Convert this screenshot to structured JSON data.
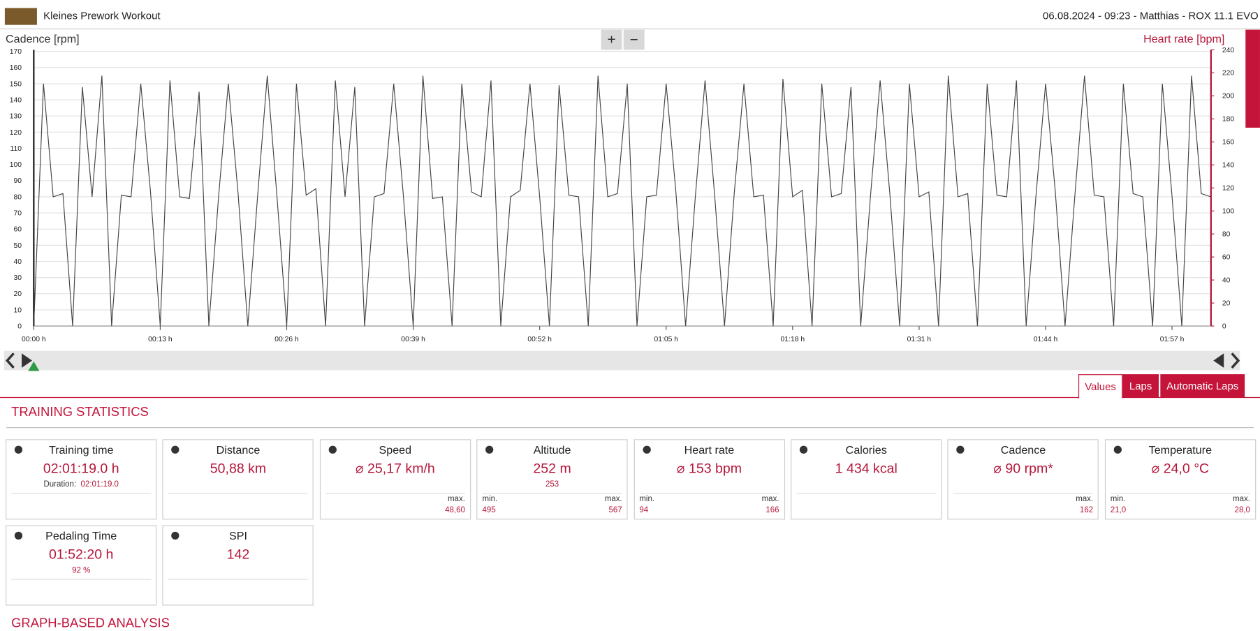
{
  "header": {
    "title": "Kleines Prework Workout",
    "info": "06.08.2024 - 09:23 - Matthias - ROX 11.1 EVO"
  },
  "controls": {
    "zoom_in": "+",
    "zoom_out": "−"
  },
  "tabs": [
    "Values",
    "Laps",
    "Automatic Laps"
  ],
  "sections": {
    "stats": "TRAINING STATISTICS",
    "analysis": "GRAPH-BASED ANALYSIS"
  },
  "chart_data": {
    "type": "line",
    "y_label": "Cadence [rpm]",
    "y2_label": "Heart rate [bpm]",
    "x": [
      0,
      1,
      2,
      3,
      4,
      5,
      6,
      7,
      8,
      9,
      10,
      11,
      12,
      13,
      14,
      15,
      16,
      17,
      18,
      19,
      20,
      21,
      22,
      23,
      24,
      25,
      26,
      27,
      28,
      29,
      30,
      31,
      32,
      33,
      34,
      35,
      36,
      37,
      38,
      39,
      40,
      41,
      42,
      43,
      44,
      45,
      46,
      47,
      48,
      49,
      50,
      51,
      52,
      53,
      54,
      55,
      56,
      57,
      58,
      59,
      60,
      61,
      62,
      63,
      64,
      65,
      66,
      67,
      68,
      69,
      70,
      71,
      72,
      73,
      74,
      75,
      76,
      77,
      78,
      79,
      80,
      81,
      82,
      83,
      84,
      85,
      86,
      87,
      88,
      89,
      90,
      91,
      92,
      93,
      94,
      95,
      96,
      97,
      98,
      99,
      100,
      101,
      102,
      103,
      104,
      105,
      106,
      107,
      108,
      109,
      110,
      111,
      112,
      113,
      114,
      115,
      116,
      117,
      118,
      119,
      120,
      121
    ],
    "series": [
      {
        "color": "#444444",
        "values": [
          0,
          150,
          80,
          82,
          0,
          148,
          80,
          155,
          0,
          81,
          80,
          150,
          83,
          0,
          152,
          80,
          79,
          145,
          0,
          80,
          150,
          82,
          0,
          80,
          155,
          80,
          0,
          150,
          81,
          85,
          0,
          152,
          80,
          148,
          0,
          80,
          82,
          150,
          80,
          0,
          155,
          79,
          80,
          0,
          150,
          83,
          80,
          152,
          0,
          80,
          84,
          150,
          80,
          0,
          149,
          81,
          80,
          0,
          155,
          80,
          82,
          150,
          0,
          80,
          81,
          150,
          83,
          0,
          80,
          152,
          80,
          0,
          82,
          150,
          80,
          81,
          0,
          153,
          80,
          84,
          0,
          150,
          80,
          82,
          148,
          0,
          80,
          152,
          81,
          0,
          150,
          80,
          83,
          0,
          155,
          80,
          82,
          0,
          150,
          81,
          80,
          152,
          0,
          80,
          150,
          83,
          0,
          80,
          155,
          81,
          80,
          0,
          150,
          82,
          80,
          0,
          150,
          80,
          0,
          155,
          82,
          80
        ]
      }
    ],
    "xlim": [
      0,
      121
    ],
    "xticks": [
      {
        "value": 0,
        "label": "00:00 h"
      },
      {
        "value": 13,
        "label": "00:13 h"
      },
      {
        "value": 26,
        "label": "00:26 h"
      },
      {
        "value": 39,
        "label": "00:39 h"
      },
      {
        "value": 52,
        "label": "00:52 h"
      },
      {
        "value": 65,
        "label": "01:05 h"
      },
      {
        "value": 78,
        "label": "01:18 h"
      },
      {
        "value": 91,
        "label": "01:31 h"
      },
      {
        "value": 104,
        "label": "01:44 h"
      },
      {
        "value": 117,
        "label": "01:57 h"
      }
    ],
    "ylim": [
      0,
      170
    ],
    "yticks": [
      0,
      10,
      20,
      30,
      40,
      50,
      60,
      70,
      80,
      90,
      100,
      110,
      120,
      130,
      140,
      150,
      160,
      170
    ],
    "y2lim": [
      0,
      240
    ],
    "y2ticks": [
      0,
      20,
      40,
      60,
      80,
      100,
      120,
      140,
      160,
      180,
      200,
      220,
      240
    ],
    "grid": true
  },
  "cards": [
    {
      "title": "Training time",
      "value": "02:01:19.0 h",
      "sub_label": "Duration:",
      "sub": "02:01:19.0"
    },
    {
      "title": "Distance",
      "value": "50,88 km"
    },
    {
      "title": "Speed",
      "value": "⌀ 25,17 km/h",
      "max_label": "max.",
      "max": "48,60"
    },
    {
      "title": "Altitude",
      "value": "252 m",
      "sub": "253",
      "min_label": "min.",
      "min": "495",
      "max_label": "max.",
      "max": "567"
    },
    {
      "title": "Heart rate",
      "value": "⌀ 153 bpm",
      "min_label": "min.",
      "min": "94",
      "max_label": "max.",
      "max": "166"
    },
    {
      "title": "Calories",
      "value": "1 434 kcal"
    },
    {
      "title": "Cadence",
      "value": "⌀ 90 rpm*",
      "max_label": "max.",
      "max": "162"
    },
    {
      "title": "Temperature",
      "value": "⌀ 24,0 °C",
      "min_label": "min.",
      "min": "21,0",
      "max_label": "max.",
      "max": "28,0"
    },
    {
      "title": "Pedaling Time",
      "value": "01:52:20 h",
      "sub": "92 %"
    },
    {
      "title": "SPI",
      "value": "142"
    }
  ]
}
